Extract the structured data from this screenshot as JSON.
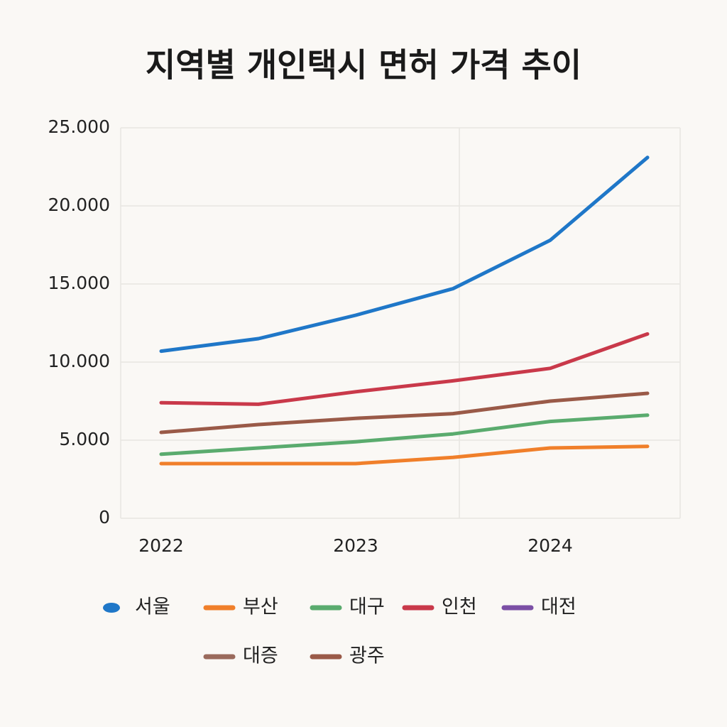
{
  "chart_data": {
    "type": "line",
    "title": "지역별 개인택시 면허 가격 추이",
    "categories": [
      "2022",
      null,
      "2023",
      null,
      "2024",
      null
    ],
    "series": [
      {
        "name": "서울",
        "color": "#1f77c8",
        "values": [
          10700,
          11500,
          13000,
          14700,
          17800,
          23100
        ]
      },
      {
        "name": "부산",
        "color": "#f07f2a",
        "values": [
          3500,
          3500,
          3500,
          3900,
          4500,
          4600
        ]
      },
      {
        "name": "대구",
        "color": "#5aab6e",
        "values": [
          4100,
          4500,
          4900,
          5400,
          6200,
          6600
        ]
      },
      {
        "name": "인천",
        "color": "#c9394a",
        "values": [
          7400,
          7300,
          8100,
          8800,
          9600,
          11800
        ]
      },
      {
        "name": "대전",
        "color": "#7b4fa5",
        "values": [
          null,
          null,
          null,
          null,
          null,
          null
        ]
      },
      {
        "name": "대증",
        "color": "#9a6a5c",
        "values": [
          null,
          null,
          null,
          null,
          null,
          null
        ]
      },
      {
        "name": "광주",
        "color": "#9a5a48",
        "values": [
          5500,
          6000,
          6400,
          6700,
          7500,
          8000
        ]
      }
    ],
    "ylim": [
      0,
      25000
    ],
    "yticks": [
      0,
      {
        "value": 5000,
        "label": "5.000"
      },
      {
        "value": 10000,
        "label": "10.000"
      },
      {
        "value": 15000,
        "label": "15.000"
      },
      {
        "value": 20000,
        "label": "20.000"
      },
      {
        "value": 25000,
        "label": "25.000"
      }
    ],
    "grid": true
  }
}
